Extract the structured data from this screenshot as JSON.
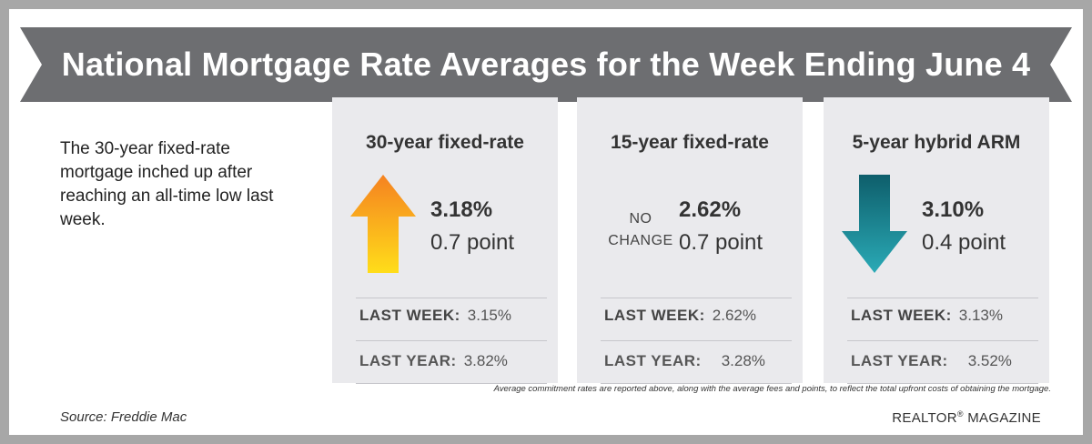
{
  "title": "National Mortgage Rate Averages for the Week Ending June 4",
  "intro": "The 30-year fixed-rate mortgage inched up after reaching an all-time low last week.",
  "source": "Source: Freddie Mac",
  "footnote": "Average commitment rates are reported above, along with the average fees and points, to reflect the total upfront costs of obtaining the mortgage.",
  "brand": {
    "name": "REALTOR",
    "mark": "®",
    "suffix": "MAGAZINE"
  },
  "labels": {
    "last_week": "LAST WEEK:",
    "last_year": "LAST YEAR:"
  },
  "colors": {
    "banner": "#6d6e71",
    "panel": "#eaeaed",
    "up_arrow_top": "#f58220",
    "up_arrow_bottom": "#ffdd1a",
    "down_arrow_top": "#0e5e6b",
    "down_arrow_bottom": "#2aaab6"
  },
  "panels": [
    {
      "title": "30-year fixed-rate",
      "direction": "up",
      "direction_icon": "up-arrow-icon",
      "rate": "3.18%",
      "points": "0.7 point",
      "last_week": "3.15%",
      "last_year": "3.82%"
    },
    {
      "title": "15-year fixed-rate",
      "direction": "none",
      "no_change": [
        "NO",
        "CHANGE"
      ],
      "rate": "2.62%",
      "points": "0.7 point",
      "last_week": "2.62%",
      "last_year": "3.28%"
    },
    {
      "title": "5-year hybrid ARM",
      "direction": "down",
      "direction_icon": "down-arrow-icon",
      "rate": "3.10%",
      "points": "0.4 point",
      "last_week": "3.13%",
      "last_year": "3.52%"
    }
  ]
}
